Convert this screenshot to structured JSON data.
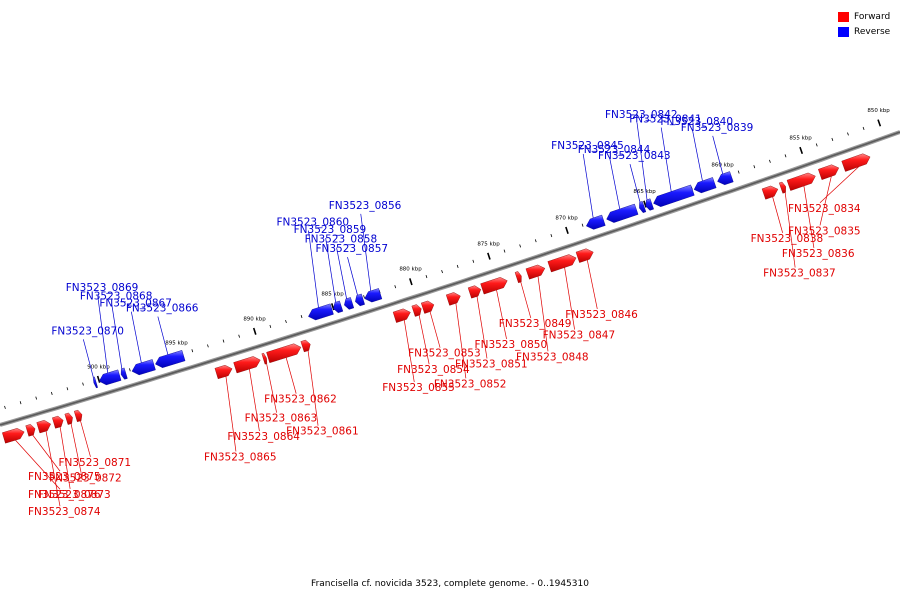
{
  "legend": {
    "forward_label": "Forward",
    "reverse_label": "Reverse",
    "forward_color": "#ff0000",
    "reverse_color": "#0000ff"
  },
  "caption": "Francisella cf. novicida 3523, complete genome. - 0..1945310",
  "ticks": [
    {
      "label": "850 kbp",
      "pos": 850
    },
    {
      "label": "855 kbp",
      "pos": 855
    },
    {
      "label": "860 kbp",
      "pos": 860
    },
    {
      "label": "865 kbp",
      "pos": 865
    },
    {
      "label": "870 kbp",
      "pos": 870
    },
    {
      "label": "875 kbp",
      "pos": 875
    },
    {
      "label": "880 kbp",
      "pos": 880
    },
    {
      "label": "885 kbp",
      "pos": 885
    },
    {
      "label": "890 kbp",
      "pos": 890
    },
    {
      "label": "895 kbp",
      "pos": 895
    },
    {
      "label": "900 kbp",
      "pos": 900
    }
  ],
  "genes": [
    {
      "name": "FN3523_0834",
      "strand": "forward",
      "start": 851.2,
      "end": 852.9
    },
    {
      "name": "FN3523_0835",
      "strand": "forward",
      "start": 853.2,
      "end": 854.4
    },
    {
      "name": "FN3523_0836",
      "strand": "forward",
      "start": 854.7,
      "end": 856.4
    },
    {
      "name": "FN3523_0837",
      "strand": "forward",
      "start": 856.6,
      "end": 856.9
    },
    {
      "name": "FN3523_0838",
      "strand": "forward",
      "start": 857.1,
      "end": 858.0
    },
    {
      "name": "FN3523_0839",
      "strand": "reverse",
      "start": 859.5,
      "end": 860.4
    },
    {
      "name": "FN3523_0840",
      "strand": "reverse",
      "start": 860.6,
      "end": 861.9
    },
    {
      "name": "FN3523_0841",
      "strand": "reverse",
      "start": 862.0,
      "end": 864.5
    },
    {
      "name": "FN3523_0842",
      "strand": "reverse",
      "start": 864.6,
      "end": 865.0
    },
    {
      "name": "FN3523_0843",
      "strand": "reverse",
      "start": 865.1,
      "end": 865.4
    },
    {
      "name": "FN3523_0844",
      "strand": "reverse",
      "start": 865.6,
      "end": 867.5
    },
    {
      "name": "FN3523_0845",
      "strand": "reverse",
      "start": 867.7,
      "end": 868.8
    },
    {
      "name": "FN3523_0846",
      "strand": "forward",
      "start": 868.9,
      "end": 869.9
    },
    {
      "name": "FN3523_0847",
      "strand": "forward",
      "start": 870.0,
      "end": 871.7
    },
    {
      "name": "FN3523_0848",
      "strand": "forward",
      "start": 872.0,
      "end": 873.1
    },
    {
      "name": "FN3523_0849",
      "strand": "forward",
      "start": 873.5,
      "end": 873.8
    },
    {
      "name": "FN3523_0850",
      "strand": "forward",
      "start": 874.4,
      "end": 876.0
    },
    {
      "name": "FN3523_0851",
      "strand": "forward",
      "start": 876.1,
      "end": 876.8
    },
    {
      "name": "FN3523_0852",
      "strand": "forward",
      "start": 877.4,
      "end": 878.2
    },
    {
      "name": "FN3523_0853",
      "strand": "forward",
      "start": 879.1,
      "end": 879.8
    },
    {
      "name": "FN3523_0854",
      "strand": "forward",
      "start": 879.9,
      "end": 880.4
    },
    {
      "name": "FN3523_0855",
      "strand": "forward",
      "start": 880.6,
      "end": 881.6
    },
    {
      "name": "FN3523_0856",
      "strand": "reverse",
      "start": 882.0,
      "end": 883.0
    },
    {
      "name": "FN3523_0857",
      "strand": "reverse",
      "start": 883.1,
      "end": 883.6
    },
    {
      "name": "FN3523_0858",
      "strand": "reverse",
      "start": 883.8,
      "end": 884.3
    },
    {
      "name": "FN3523_0859",
      "strand": "reverse",
      "start": 884.5,
      "end": 885.0
    },
    {
      "name": "FN3523_0860",
      "strand": "reverse",
      "start": 885.1,
      "end": 886.6
    },
    {
      "name": "FN3523_0861",
      "strand": "forward",
      "start": 887.0,
      "end": 887.5
    },
    {
      "name": "FN3523_0862",
      "strand": "forward",
      "start": 887.6,
      "end": 889.7
    },
    {
      "name": "FN3523_0863",
      "strand": "forward",
      "start": 889.8,
      "end": 890.0
    },
    {
      "name": "FN3523_0864",
      "strand": "forward",
      "start": 890.2,
      "end": 891.8
    },
    {
      "name": "FN3523_0865",
      "strand": "forward",
      "start": 892.0,
      "end": 893.0
    },
    {
      "name": "FN3523_0866",
      "strand": "reverse",
      "start": 894.6,
      "end": 896.4
    },
    {
      "name": "FN3523_0867",
      "strand": "reverse",
      "start": 896.5,
      "end": 897.9
    },
    {
      "name": "FN3523_0868",
      "strand": "reverse",
      "start": 898.3,
      "end": 898.6
    },
    {
      "name": "FN3523_0869",
      "strand": "reverse",
      "start": 898.7,
      "end": 900.0
    },
    {
      "name": "FN3523_0870",
      "strand": "reverse",
      "start": 900.2,
      "end": 900.2
    },
    {
      "name": "FN3523_0871",
      "strand": "forward",
      "start": 901.6,
      "end": 902.0
    },
    {
      "name": "FN3523_0872",
      "strand": "forward",
      "start": 902.2,
      "end": 902.6
    },
    {
      "name": "FN3523_0873",
      "strand": "forward",
      "start": 902.8,
      "end": 903.4
    },
    {
      "name": "FN3523_0874",
      "strand": "forward",
      "start": 903.6,
      "end": 904.4
    },
    {
      "name": "FN3523_0875",
      "strand": "forward",
      "start": 904.6,
      "end": 905.1
    },
    {
      "name": "FN3523_0876",
      "strand": "forward",
      "start": 905.3,
      "end": 906.6
    }
  ]
}
